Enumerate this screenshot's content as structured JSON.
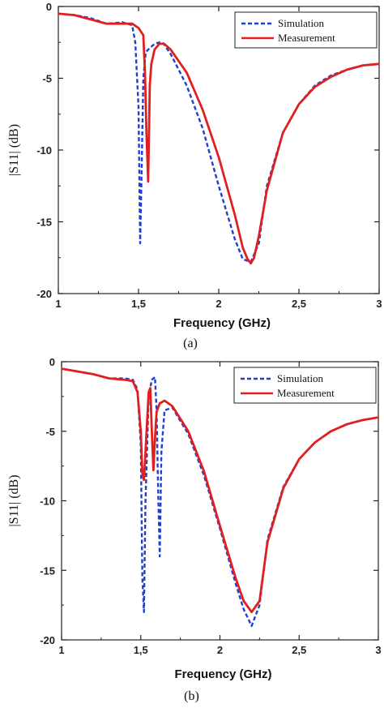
{
  "chart_data": [
    {
      "type": "line",
      "panel_label": "(a)",
      "xlabel": "Frequency (GHz)",
      "ylabel": "|S11| (dB)",
      "xlim": [
        1,
        3
      ],
      "ylim": [
        -20,
        0
      ],
      "xticks": [
        1,
        1.5,
        2,
        2.5,
        3
      ],
      "xtick_labels": [
        "1",
        "1,5",
        "2",
        "2,5",
        "3"
      ],
      "yticks": [
        0,
        -5,
        -10,
        -15,
        -20
      ],
      "ytick_labels": [
        "0",
        "-5",
        "-10",
        "-15",
        "-20"
      ],
      "legend_position": "top-right",
      "grid": false,
      "series": [
        {
          "name": "Simulation",
          "color": "#1f3fd0",
          "style": "dashed",
          "x": [
            1.0,
            1.1,
            1.2,
            1.3,
            1.4,
            1.46,
            1.48,
            1.5,
            1.51,
            1.52,
            1.53,
            1.545,
            1.56,
            1.58,
            1.6,
            1.63,
            1.65,
            1.7,
            1.8,
            1.9,
            2.0,
            2.1,
            2.15,
            2.2,
            2.25,
            2.3,
            2.4,
            2.5,
            2.6,
            2.7,
            2.8,
            2.9,
            3.0
          ],
          "y": [
            -0.5,
            -0.6,
            -0.8,
            -1.2,
            -1.1,
            -1.3,
            -2.5,
            -7.0,
            -16.5,
            -11.0,
            -5.0,
            -3.2,
            -3.0,
            -2.8,
            -2.6,
            -2.5,
            -2.5,
            -3.3,
            -5.5,
            -8.5,
            -12.5,
            -16.2,
            -17.6,
            -17.8,
            -16.5,
            -12.5,
            -8.8,
            -6.8,
            -5.5,
            -4.8,
            -4.4,
            -4.1,
            -4.0
          ]
        },
        {
          "name": "Measurement",
          "color": "#e02020",
          "style": "solid",
          "x": [
            1.0,
            1.1,
            1.2,
            1.3,
            1.4,
            1.46,
            1.5,
            1.53,
            1.54,
            1.55,
            1.56,
            1.57,
            1.58,
            1.6,
            1.63,
            1.66,
            1.7,
            1.8,
            1.9,
            2.0,
            2.1,
            2.15,
            2.18,
            2.2,
            2.22,
            2.25,
            2.3,
            2.4,
            2.5,
            2.6,
            2.7,
            2.8,
            2.9,
            3.0
          ],
          "y": [
            -0.5,
            -0.6,
            -0.9,
            -1.2,
            -1.2,
            -1.2,
            -1.5,
            -2.0,
            -4.5,
            -9.0,
            -12.2,
            -5.5,
            -4.0,
            -3.0,
            -2.6,
            -2.6,
            -3.0,
            -4.6,
            -7.2,
            -10.5,
            -14.5,
            -16.8,
            -17.6,
            -17.9,
            -17.5,
            -16.0,
            -12.8,
            -8.8,
            -6.8,
            -5.6,
            -4.9,
            -4.4,
            -4.1,
            -4.0
          ]
        }
      ]
    },
    {
      "type": "line",
      "panel_label": "(b)",
      "xlabel": "Frequency (GHz)",
      "ylabel": "|S11| (dB)",
      "xlim": [
        1,
        3
      ],
      "ylim": [
        -20,
        0
      ],
      "xticks": [
        1,
        1.5,
        2,
        2.5,
        3
      ],
      "xtick_labels": [
        "1",
        "1,5",
        "2",
        "2,5",
        "3"
      ],
      "yticks": [
        0,
        -5,
        -10,
        -15,
        -20
      ],
      "ytick_labels": [
        "0",
        "-5",
        "-10",
        "-15",
        "-20"
      ],
      "legend_position": "top-right",
      "grid": false,
      "series": [
        {
          "name": "Simulation",
          "color": "#1f3fd0",
          "style": "dashed",
          "x": [
            1.0,
            1.1,
            1.2,
            1.3,
            1.4,
            1.45,
            1.48,
            1.5,
            1.51,
            1.52,
            1.53,
            1.55,
            1.57,
            1.59,
            1.6,
            1.61,
            1.62,
            1.63,
            1.65,
            1.7,
            1.8,
            1.9,
            2.0,
            2.1,
            2.15,
            2.2,
            2.25,
            2.3,
            2.4,
            2.5,
            2.6,
            2.7,
            2.8,
            2.9,
            3.0
          ],
          "y": [
            -0.5,
            -0.7,
            -0.9,
            -1.2,
            -1.2,
            -1.3,
            -2.0,
            -6.0,
            -15.5,
            -18.0,
            -10.0,
            -2.5,
            -1.3,
            -1.1,
            -3.5,
            -9.5,
            -14.0,
            -6.5,
            -3.5,
            -3.3,
            -5.2,
            -8.2,
            -12.0,
            -16.0,
            -17.8,
            -19.0,
            -17.5,
            -12.8,
            -9.0,
            -7.0,
            -5.8,
            -5.0,
            -4.5,
            -4.2,
            -4.0
          ]
        },
        {
          "name": "Measurement",
          "color": "#e02020",
          "style": "solid",
          "x": [
            1.0,
            1.1,
            1.2,
            1.3,
            1.4,
            1.45,
            1.48,
            1.5,
            1.51,
            1.52,
            1.53,
            1.55,
            1.56,
            1.57,
            1.58,
            1.59,
            1.6,
            1.62,
            1.65,
            1.7,
            1.8,
            1.9,
            2.0,
            2.1,
            2.15,
            2.2,
            2.25,
            2.3,
            2.4,
            2.5,
            2.6,
            2.7,
            2.8,
            2.9,
            3.0
          ],
          "y": [
            -0.5,
            -0.7,
            -0.9,
            -1.2,
            -1.3,
            -1.4,
            -2.2,
            -5.0,
            -8.0,
            -8.5,
            -6.5,
            -2.2,
            -1.9,
            -5.0,
            -7.8,
            -5.5,
            -3.6,
            -3.0,
            -2.8,
            -3.2,
            -5.0,
            -7.9,
            -11.8,
            -15.6,
            -17.2,
            -18.0,
            -17.2,
            -13.0,
            -9.1,
            -7.0,
            -5.8,
            -5.0,
            -4.5,
            -4.2,
            -4.0
          ]
        }
      ]
    }
  ]
}
